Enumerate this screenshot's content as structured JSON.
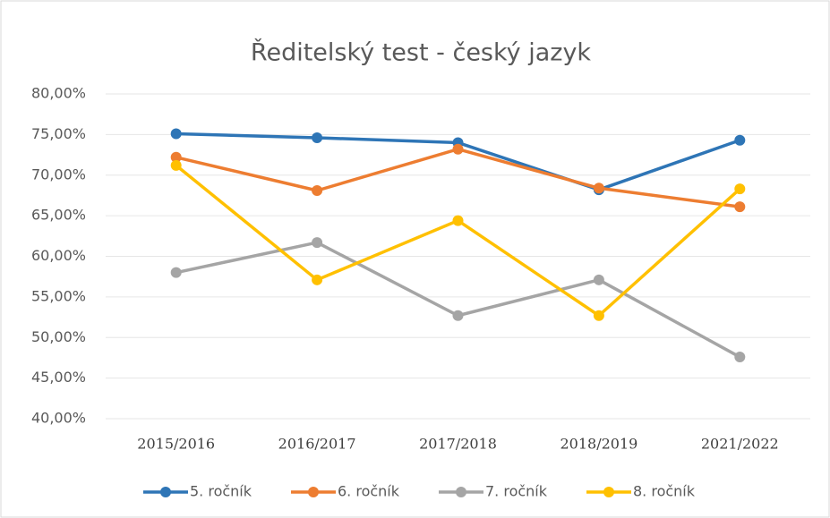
{
  "chart_data": {
    "type": "line",
    "title": "Ředitelský test - český jazyk",
    "categories": [
      "2015/2016",
      "2016/2017",
      "2017/2018",
      "2018/2019",
      "2021/2022"
    ],
    "series": [
      {
        "name": "5. ročník",
        "color": "#2e75b6",
        "values": [
          75.1,
          74.6,
          74.0,
          68.2,
          74.3
        ]
      },
      {
        "name": "6. ročník",
        "color": "#ed7d31",
        "values": [
          72.2,
          68.1,
          73.2,
          68.4,
          66.1
        ]
      },
      {
        "name": "7. ročník",
        "color": "#a5a5a5",
        "values": [
          58.0,
          61.7,
          52.7,
          57.1,
          47.6
        ]
      },
      {
        "name": "8. ročník",
        "color": "#ffc000",
        "values": [
          71.2,
          57.1,
          64.4,
          52.7,
          68.3
        ]
      }
    ],
    "ylim": [
      40,
      80
    ],
    "yticks": [
      {
        "value": 40,
        "label": "40,00%"
      },
      {
        "value": 45,
        "label": "45,00%"
      },
      {
        "value": 50,
        "label": "50,00%"
      },
      {
        "value": 55,
        "label": "55,00%"
      },
      {
        "value": 60,
        "label": "60,00%"
      },
      {
        "value": 65,
        "label": "65,00%"
      },
      {
        "value": 70,
        "label": "70,00%"
      },
      {
        "value": 75,
        "label": "75,00%"
      },
      {
        "value": 80,
        "label": "80,00%"
      }
    ],
    "grid": true,
    "legend": "bottom"
  }
}
